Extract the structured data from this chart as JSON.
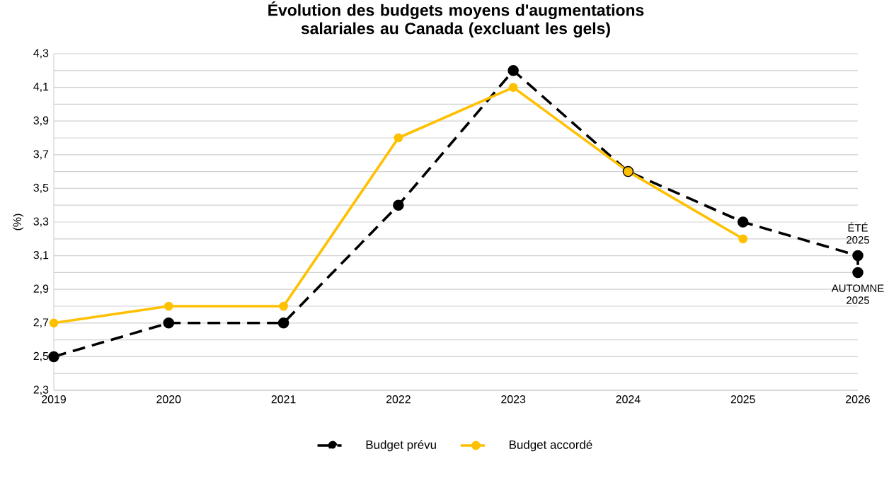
{
  "chart_data": {
    "type": "line",
    "title": "Évolution des budgets moyens d'augmentations salariales au Canada (excluant les gels)",
    "ylabel": "(%)",
    "series": [
      {
        "name": "Budget prévu",
        "color": "#000000",
        "line_style": "dashed",
        "x": [
          2019,
          2020,
          2021,
          2022,
          2023,
          2024,
          2025,
          2026,
          2026
        ],
        "values": [
          2.5,
          2.7,
          2.7,
          3.4,
          4.2,
          3.6,
          3.3,
          3.1,
          3.0
        ]
      },
      {
        "name": "Budget accordé",
        "color": "#ffc000",
        "line_style": "solid",
        "x": [
          2019,
          2020,
          2021,
          2022,
          2023,
          2024,
          2025
        ],
        "values": [
          2.7,
          2.8,
          2.8,
          3.8,
          4.1,
          3.6,
          3.2
        ]
      }
    ],
    "xlim": [
      2019,
      2026
    ],
    "xticks": [
      2019,
      2020,
      2021,
      2022,
      2023,
      2024,
      2025,
      2026
    ],
    "ylim": [
      2.3,
      4.3
    ],
    "yticks": [
      {
        "value": 2.3,
        "label": "2,3"
      },
      {
        "value": 2.4,
        "label": null
      },
      {
        "value": 2.5,
        "label": "2,5"
      },
      {
        "value": 2.6,
        "label": null
      },
      {
        "value": 2.7,
        "label": "2,7"
      },
      {
        "value": 2.8,
        "label": null
      },
      {
        "value": 2.9,
        "label": "2,9"
      },
      {
        "value": 3.0,
        "label": null
      },
      {
        "value": 3.1,
        "label": "3,1"
      },
      {
        "value": 3.2,
        "label": null
      },
      {
        "value": 3.3,
        "label": "3,3"
      },
      {
        "value": 3.4,
        "label": null
      },
      {
        "value": 3.5,
        "label": "3,5"
      },
      {
        "value": 3.6,
        "label": null
      },
      {
        "value": 3.7,
        "label": "3,7"
      },
      {
        "value": 3.8,
        "label": null
      },
      {
        "value": 3.9,
        "label": "3,9"
      },
      {
        "value": 4.0,
        "label": null
      },
      {
        "value": 4.1,
        "label": "4,1"
      },
      {
        "value": 4.2,
        "label": null
      },
      {
        "value": 4.3,
        "label": "4,3"
      }
    ],
    "grid": "y",
    "legend": "bottom",
    "marker": "circle",
    "annotations": [
      {
        "text": "ÉTÉ 2025",
        "x": 2026,
        "y": 3.1
      },
      {
        "text": "AUTOMNE 2025",
        "x": 2026,
        "y": 3.0
      }
    ]
  }
}
